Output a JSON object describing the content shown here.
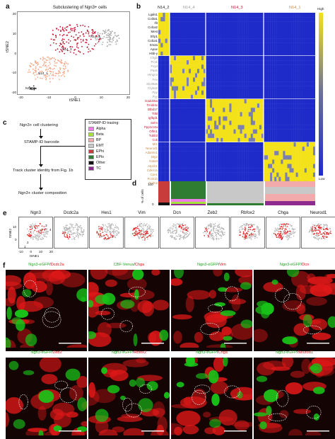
{
  "panels": {
    "a": {
      "letter": "a",
      "title": "Subclustering of Ngn3+ cells",
      "xlabel": "tSNE1",
      "ylabel": "tSNE2",
      "xticks": [
        "-20",
        "-10",
        "0",
        "10",
        "20"
      ],
      "yticks": [
        "20",
        "10",
        "0",
        "-10",
        "-20"
      ],
      "clusters": [
        {
          "name": "N14_4",
          "color": "#a8a8a8"
        },
        {
          "name": "N14_3",
          "color": "#c8102e"
        },
        {
          "name": "N14_1",
          "color": "#f4a582"
        },
        {
          "name": "N14_2",
          "color": "#333333"
        }
      ]
    },
    "b": {
      "letter": "b",
      "headers": [
        "N14_2",
        "N14_4",
        "N14_3",
        "N14_1"
      ],
      "header_colors": [
        "#222222",
        "#9a9a9a",
        "#c8102e",
        "#c98a4a"
      ],
      "scale_high": "High",
      "scale_low": "Low",
      "gene_groups": [
        {
          "color": "#111111",
          "genes": [
            "Lgals1",
            "Col3a1",
            "Ifit",
            "Col1a2",
            "Mest",
            "Sfrp1",
            "Col1a1",
            "Itm2a",
            "Apoe",
            "Hbb-y"
          ]
        },
        {
          "color": "#9a9a9a",
          "genes": [
            "Chgb",
            "Pcsk",
            "Fxyd",
            "Pax6",
            "Hmgn3",
            "Fev",
            "Slc38a5",
            "Cryba2",
            "Ppy",
            "Pyy"
          ]
        },
        {
          "color": "#c8102e",
          "genes": [
            "Gadd45a",
            "Tmsb4x",
            "Btbd17",
            "Ttl6l",
            "Igfbpl1",
            "Selm",
            "Ppp1r14a",
            "Olfm1",
            "Tubb3",
            "Cck"
          ]
        },
        {
          "color": "#c98a4a",
          "genes": [
            "Mt1",
            "Neurod1",
            "Adamts1",
            "Btg2",
            "Gata3",
            "Atp1b1",
            "Cdkn1a",
            "Cpe1",
            "Pcsk1b",
            "Prdm2"
          ]
        }
      ]
    },
    "c": {
      "letter": "c",
      "steps": [
        "Ngn3+ cell clustering",
        "STAMP-ID barcode",
        "Track cluster identity from Fig. 1b",
        "Ngn3+ cluster composition"
      ],
      "legend_title": "STAMP-ID tracing:",
      "legend": [
        {
          "name": "Alpha",
          "color": "#ee7ee6"
        },
        {
          "name": "Beta",
          "color": "#a6e33a"
        },
        {
          "name": "BP",
          "color": "#f2aaaa"
        },
        {
          "name": "EMT",
          "color": "#c8c8c8"
        },
        {
          "name": "EPhi",
          "color": "#c83c3c"
        },
        {
          "name": "EPlo",
          "color": "#2e7d32"
        },
        {
          "name": "Other",
          "color": "#111111"
        },
        {
          "name": "TC",
          "color": "#8e2a8e"
        }
      ]
    },
    "d": {
      "letter": "d",
      "ylabel": "% of cells",
      "yticks": [
        "100",
        "0"
      ]
    },
    "e": {
      "letter": "e",
      "xlabel": "tSNE1",
      "ylabel": "tSNE2",
      "xticks": [
        "-10",
        "0",
        "10",
        "20"
      ],
      "yticks": [
        "10",
        "0"
      ],
      "cluster_numbers": [
        "1",
        "2",
        "3",
        "4"
      ],
      "genes": [
        "Ngn3",
        "Dcdc2a",
        "Hes1",
        "Vim",
        "Dcn",
        "Zeb2",
        "Rbfox2",
        "Chga",
        "Neurod1"
      ]
    },
    "f": {
      "letter": "f",
      "images": [
        {
          "green": "Ngn3-eGFP",
          "red": "Dcdc2a"
        },
        {
          "green": "CBF-Venus",
          "red": "Chga"
        },
        {
          "green": "Ngn3-eGFP",
          "red": "Vim"
        },
        {
          "green": "Ngn3-eGFP",
          "red": "Dcn"
        },
        {
          "green": "Ngn3-eGFP",
          "red": "Zeb2"
        },
        {
          "green": "Ngn3-eGFP",
          "red": "Rbfox2"
        },
        {
          "green": "Ngn3-eGFP",
          "red": "Chga"
        },
        {
          "green": "Ngn3-eGFP",
          "red": "Neurod1"
        }
      ]
    }
  },
  "colors": {
    "heat_low": "#1f2bc9",
    "heat_high": "#f3e21a",
    "green_channel": "#18c218",
    "red_channel": "#e01818"
  }
}
